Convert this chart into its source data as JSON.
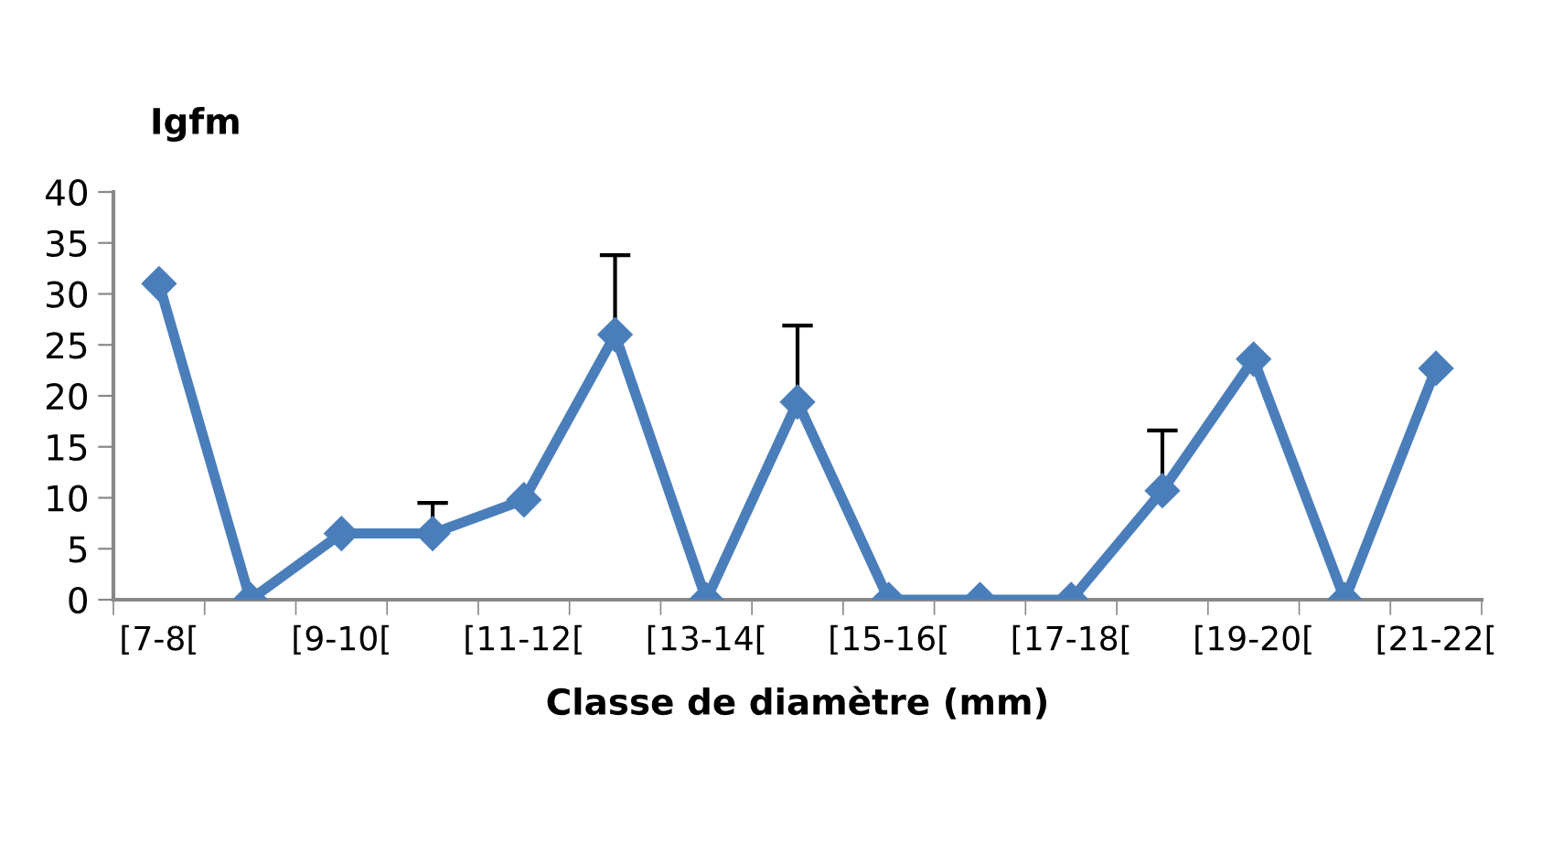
{
  "chart_data": {
    "type": "line",
    "xlabel": "Classe de diamètre (mm)",
    "ylabel": "Igfm",
    "categories": [
      "[7-8[",
      null,
      "[9-10[",
      null,
      "[11-12[",
      null,
      "[13-14[",
      null,
      "[15-16[",
      null,
      "[17-18[",
      null,
      "[19-20[",
      null,
      "[21-22["
    ],
    "series": [
      {
        "color": "#4a7ebb",
        "values": [
          31.0,
          0,
          6.5,
          6.5,
          9.8,
          26.0,
          0,
          19.4,
          0,
          0,
          0,
          10.7,
          23.6,
          0,
          22.7
        ],
        "errors": [
          null,
          null,
          null,
          [
            6.5,
            9.5
          ],
          null,
          [
            26.0,
            33.8
          ],
          null,
          [
            19.4,
            26.9
          ],
          null,
          null,
          null,
          [
            10.7,
            16.6
          ],
          null,
          null,
          null
        ]
      }
    ],
    "ylim": [
      0,
      40
    ],
    "yticks": [
      0,
      5,
      10,
      15,
      20,
      25,
      30,
      35,
      40
    ],
    "marker": "diamond",
    "line_style": "solid",
    "grid": false,
    "legend": false
  }
}
